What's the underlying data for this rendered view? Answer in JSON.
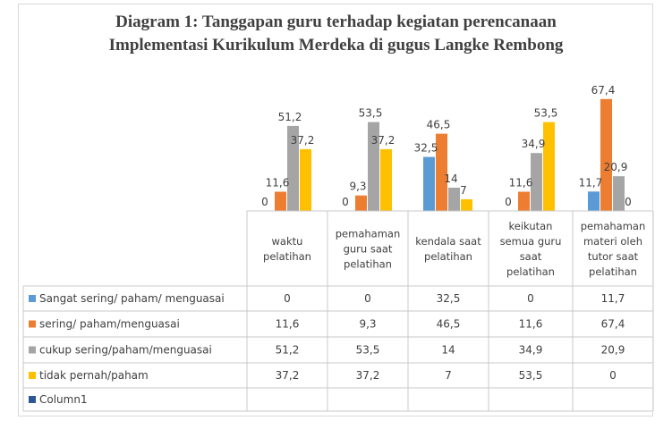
{
  "chart_data": {
    "type": "bar",
    "title_line1": "Diagram 1: Tanggapan guru terhadap kegiatan perencanaan",
    "title_line2": "Implementasi Kurikulum Merdeka di gugus Langke Rembong",
    "categories": [
      [
        "waktu",
        "pelatihan"
      ],
      [
        "pemahaman",
        "guru saat",
        "pelatihan"
      ],
      [
        "kendala saat",
        "pelatihan"
      ],
      [
        "keikutan",
        "semua guru",
        "saat",
        "pelatihan"
      ],
      [
        "pemahaman",
        "materi oleh",
        "tutor saat",
        "pelatihan"
      ]
    ],
    "series": [
      {
        "name": "Sangat sering/ paham/ menguasai",
        "color": "#5b9bd5",
        "values": [
          0,
          0,
          32.5,
          0,
          11.7
        ],
        "labels": [
          "0",
          "0",
          "32,5",
          "0",
          "11,7"
        ]
      },
      {
        "name": "sering/ paham/menguasai",
        "color": "#ed7d31",
        "values": [
          11.6,
          9.3,
          46.5,
          11.6,
          67.4
        ],
        "labels": [
          "11,6",
          "9,3",
          "46,5",
          "11,6",
          "67,4"
        ]
      },
      {
        "name": "cukup sering/paham/menguasai",
        "color": "#a5a5a5",
        "values": [
          51.2,
          53.5,
          14,
          34.9,
          20.9
        ],
        "labels": [
          "51,2",
          "53,5",
          "14",
          "34,9",
          "20,9"
        ]
      },
      {
        "name": "tidak  pernah/paham",
        "color": "#ffc000",
        "values": [
          37.2,
          37.2,
          7,
          53.5,
          0
        ],
        "labels": [
          "37,2",
          "37,2",
          "7",
          "53,5",
          "0"
        ]
      },
      {
        "name": "Column1",
        "color": "#2e5596",
        "values": [
          null,
          null,
          null,
          null,
          null
        ],
        "labels": [
          "",
          "",
          "",
          "",
          ""
        ]
      }
    ],
    "ylim": [
      0,
      70
    ],
    "legend": "data-table"
  }
}
